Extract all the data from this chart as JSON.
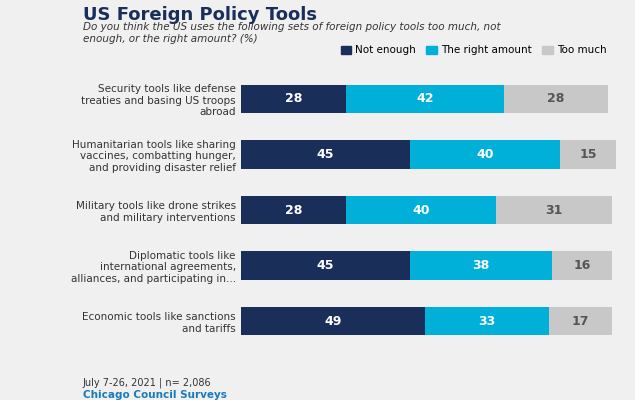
{
  "title": "US Foreign Policy Tools",
  "subtitle": "Do you think the US uses the following sets of foreign policy tools too much, not\nenough, or the right amount? (%)",
  "categories": [
    "Security tools like defense\ntreaties and basing US troops\nabroad",
    "Humanitarian tools like sharing\nvaccines, combatting hunger,\nand providing disaster relief",
    "Military tools like drone strikes\nand military interventions",
    "Diplomatic tools like\ninternational agreements,\nalliances, and participating in...",
    "Economic tools like sanctions\nand tariffs"
  ],
  "not_enough": [
    28,
    45,
    28,
    45,
    49
  ],
  "right_amount": [
    42,
    40,
    40,
    38,
    33
  ],
  "too_much": [
    28,
    15,
    31,
    16,
    17
  ],
  "color_not_enough": "#1a2e5a",
  "color_right_amount": "#00b0d8",
  "color_too_much": "#c8c8c8",
  "legend_labels": [
    "Not enough",
    "The right amount",
    "Too much"
  ],
  "footnote": "July 7-26, 2021 | n= 2,086",
  "source": "Chicago Council Surveys",
  "background_color": "#f0f0f0"
}
